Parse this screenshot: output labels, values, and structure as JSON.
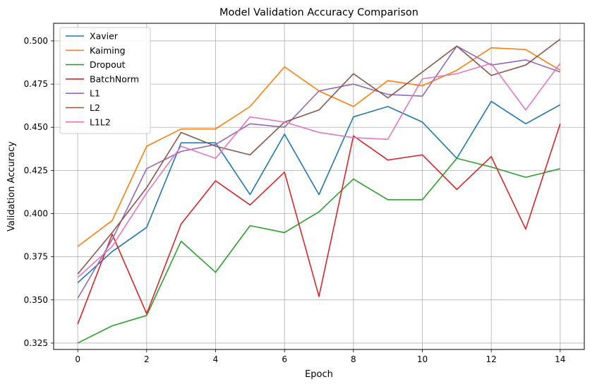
{
  "chart_data": {
    "type": "line",
    "title": "Model Validation Accuracy Comparison",
    "xlabel": "Epoch",
    "ylabel": "Validation Accuracy",
    "xlim": [
      -0.7,
      14.7
    ],
    "ylim": [
      0.3213,
      0.5102
    ],
    "xticks": [
      0,
      2,
      4,
      6,
      8,
      10,
      12,
      14
    ],
    "yticks": [
      0.325,
      0.35,
      0.375,
      0.4,
      0.425,
      0.45,
      0.475,
      0.5
    ],
    "ytick_labels": [
      "0.325",
      "0.350",
      "0.375",
      "0.400",
      "0.425",
      "0.450",
      "0.475",
      "0.500"
    ],
    "grid": true,
    "legend_position": "top-left",
    "x": [
      0,
      1,
      2,
      3,
      4,
      5,
      6,
      7,
      8,
      9,
      10,
      11,
      12,
      13,
      14
    ],
    "series": [
      {
        "name": "Xavier",
        "color": "#1f77b4",
        "values": [
          0.36,
          0.378,
          0.392,
          0.441,
          0.441,
          0.411,
          0.446,
          0.411,
          0.456,
          0.462,
          0.453,
          0.432,
          0.465,
          0.452,
          0.463
        ]
      },
      {
        "name": "Kaiming",
        "color": "#ff7f0e",
        "values": [
          0.381,
          0.396,
          0.439,
          0.449,
          0.449,
          0.462,
          0.485,
          0.471,
          0.462,
          0.477,
          0.474,
          0.483,
          0.496,
          0.495,
          0.483
        ]
      },
      {
        "name": "Dropout",
        "color": "#2ca02c",
        "values": [
          0.325,
          0.335,
          0.341,
          0.384,
          0.366,
          0.393,
          0.389,
          0.401,
          0.42,
          0.408,
          0.408,
          0.432,
          0.427,
          0.421,
          0.426
        ]
      },
      {
        "name": "BatchNorm",
        "color": "#d62728",
        "values": [
          0.336,
          0.388,
          0.342,
          0.394,
          0.419,
          0.405,
          0.424,
          0.352,
          0.445,
          0.431,
          0.434,
          0.414,
          0.433,
          0.391,
          0.452
        ]
      },
      {
        "name": "L1",
        "color": "#9467bd",
        "values": [
          0.351,
          0.385,
          0.426,
          0.436,
          0.44,
          0.452,
          0.45,
          0.471,
          0.475,
          0.469,
          0.468,
          0.497,
          0.486,
          0.489,
          0.482
        ]
      },
      {
        "name": "L2",
        "color": "#8c564b",
        "values": [
          0.365,
          0.389,
          0.415,
          0.447,
          0.439,
          0.434,
          0.453,
          0.46,
          0.481,
          0.467,
          0.482,
          0.497,
          0.48,
          0.486,
          0.501
        ]
      },
      {
        "name": "L1L2",
        "color": "#e377c2",
        "values": [
          0.363,
          0.381,
          0.412,
          0.439,
          0.432,
          0.456,
          0.453,
          0.447,
          0.444,
          0.443,
          0.478,
          0.481,
          0.487,
          0.46,
          0.487
        ]
      }
    ]
  }
}
